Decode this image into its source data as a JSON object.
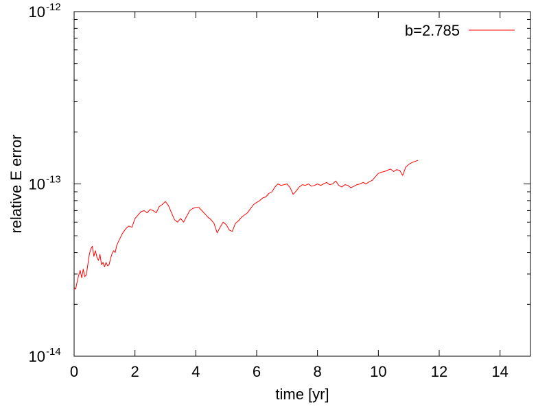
{
  "chart_data": {
    "type": "line",
    "xlabel": "time [yr]",
    "ylabel": "relative E error",
    "xlim": [
      0,
      15
    ],
    "ylim": [
      1e-14,
      1e-12
    ],
    "yscale": "log",
    "grid": false,
    "legend_position": "top-right",
    "x_ticks": [
      {
        "value": 0,
        "label": "0"
      },
      {
        "value": 2,
        "label": "2"
      },
      {
        "value": 4,
        "label": "4"
      },
      {
        "value": 6,
        "label": "6"
      },
      {
        "value": 8,
        "label": "8"
      },
      {
        "value": 10,
        "label": "10"
      },
      {
        "value": 12,
        "label": "12"
      },
      {
        "value": 14,
        "label": "14"
      }
    ],
    "y_ticks": [
      {
        "value": 1e-14,
        "base": "10",
        "exp": "-14"
      },
      {
        "value": 1e-13,
        "base": "10",
        "exp": "-13"
      },
      {
        "value": 1e-12,
        "base": "10",
        "exp": "-12"
      }
    ],
    "series": [
      {
        "name": "b=2.785",
        "color": "#ff0000",
        "x": [
          0.0,
          0.05,
          0.1,
          0.15,
          0.2,
          0.25,
          0.3,
          0.35,
          0.4,
          0.45,
          0.5,
          0.55,
          0.6,
          0.65,
          0.7,
          0.75,
          0.8,
          0.85,
          0.9,
          0.95,
          1.0,
          1.05,
          1.1,
          1.15,
          1.2,
          1.25,
          1.3,
          1.35,
          1.4,
          1.5,
          1.6,
          1.7,
          1.8,
          1.9,
          2.0,
          2.1,
          2.2,
          2.3,
          2.4,
          2.5,
          2.6,
          2.7,
          2.8,
          2.9,
          3.0,
          3.1,
          3.2,
          3.3,
          3.4,
          3.5,
          3.6,
          3.7,
          3.8,
          3.9,
          4.0,
          4.1,
          4.2,
          4.3,
          4.4,
          4.5,
          4.6,
          4.7,
          4.8,
          4.9,
          5.0,
          5.1,
          5.2,
          5.3,
          5.4,
          5.5,
          5.6,
          5.7,
          5.8,
          5.9,
          6.0,
          6.1,
          6.2,
          6.3,
          6.4,
          6.5,
          6.6,
          6.7,
          6.8,
          6.9,
          7.0,
          7.1,
          7.2,
          7.3,
          7.4,
          7.5,
          7.6,
          7.7,
          7.8,
          7.9,
          8.0,
          8.1,
          8.2,
          8.3,
          8.4,
          8.5,
          8.6,
          8.7,
          8.8,
          8.9,
          9.0,
          9.1,
          9.2,
          9.3,
          9.4,
          9.5,
          9.6,
          9.7,
          9.8,
          9.9,
          10.0,
          10.1,
          10.2,
          10.3,
          10.4,
          10.5,
          10.6,
          10.7,
          10.8,
          10.9,
          11.0,
          11.1,
          11.2,
          11.3
        ],
        "y": [
          2.5e-14,
          2.45e-14,
          2.7e-14,
          2.95e-14,
          3.15e-14,
          2.85e-14,
          3.2e-14,
          2.9e-14,
          2.95e-14,
          3.4e-14,
          3.9e-14,
          4.2e-14,
          4.35e-14,
          3.8e-14,
          4.1e-14,
          3.75e-14,
          3.6e-14,
          3.9e-14,
          3.4e-14,
          3.5e-14,
          3.3e-14,
          3.5e-14,
          3.35e-14,
          3.4e-14,
          3.7e-14,
          3.95e-14,
          4.1e-14,
          4e-14,
          4.4e-14,
          4.8e-14,
          5.2e-14,
          5.5e-14,
          5.7e-14,
          5.6e-14,
          6.3e-14,
          6.6e-14,
          6.9e-14,
          7e-14,
          6.8e-14,
          7.1e-14,
          7e-14,
          6.8e-14,
          7.4e-14,
          7.6e-14,
          7.9e-14,
          7.5e-14,
          6.8e-14,
          6.2e-14,
          6e-14,
          6.3e-14,
          6e-14,
          6.5e-14,
          7e-14,
          7.2e-14,
          7.3e-14,
          7.3e-14,
          7e-14,
          6.7e-14,
          6.4e-14,
          6.2e-14,
          5.9e-14,
          5.2e-14,
          5.6e-14,
          6e-14,
          5.8e-14,
          5.4e-14,
          5.3e-14,
          5.9e-14,
          6.1e-14,
          6.4e-14,
          6.6e-14,
          6.8e-14,
          7.2e-14,
          7.6e-14,
          7.8e-14,
          8e-14,
          8.3e-14,
          8.4e-14,
          8.8e-14,
          9e-14,
          9.6e-14,
          1e-13,
          9.8e-14,
          9.9e-14,
          1e-13,
          9.5e-14,
          8.7e-14,
          9.1e-14,
          9.6e-14,
          9.9e-14,
          9.8e-14,
          1e-13,
          9.7e-14,
          9.8e-14,
          1e-13,
          9.8e-14,
          1e-13,
          1.02e-13,
          9.9e-14,
          1e-13,
          1.04e-13,
          9.8e-14,
          9.6e-14,
          9.9e-14,
          9.8e-14,
          9.5e-14,
          9.7e-14,
          9.9e-14,
          1e-13,
          1.02e-13,
          1e-13,
          1.03e-13,
          1.05e-13,
          1.1e-13,
          1.15e-13,
          1.17e-13,
          1.18e-13,
          1.2e-13,
          1.22e-13,
          1.18e-13,
          1.21e-13,
          1.2e-13,
          1.12e-13,
          1.25e-13,
          1.3e-13,
          1.33e-13,
          1.35e-13,
          1.37e-13
        ]
      }
    ]
  }
}
